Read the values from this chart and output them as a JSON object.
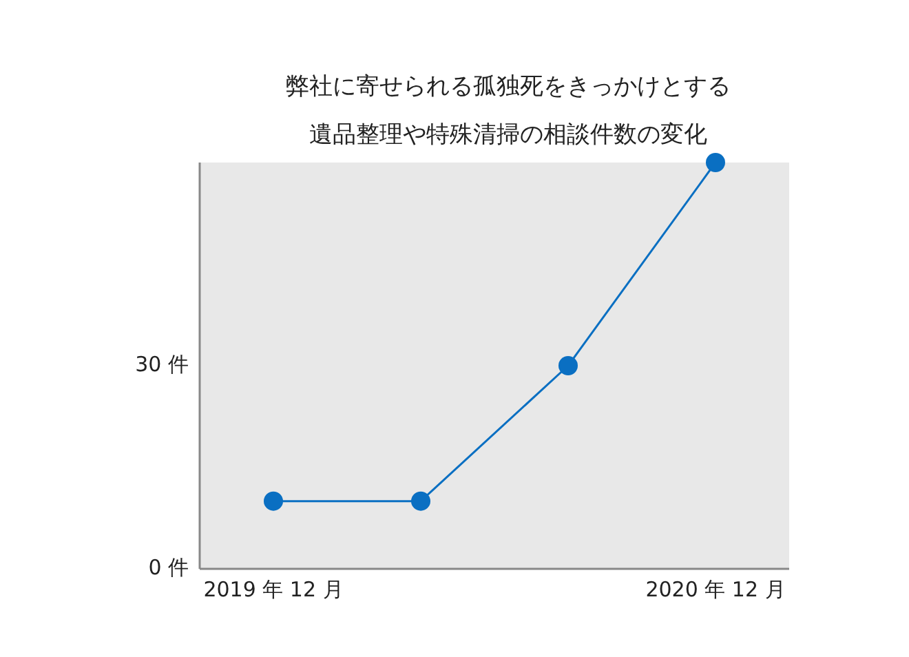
{
  "chart_data": {
    "type": "line",
    "title": "弊社に寄せられる孤独死をきっかけとする",
    "subtitle": "遺品整理や特殊清掃の相談件数の変化",
    "categories": [
      "2019 年 12 月",
      null,
      null,
      "2020 年 12 月"
    ],
    "series": [
      {
        "color": "#0a6fc2",
        "values": [
          10,
          10,
          30,
          60
        ]
      }
    ],
    "ylim": [
      0,
      60
    ],
    "yticks": [
      {
        "value": 0,
        "label": "0 件"
      },
      {
        "value": 30,
        "label": "30 件"
      }
    ],
    "marker": "circle",
    "line_style": "solid"
  }
}
